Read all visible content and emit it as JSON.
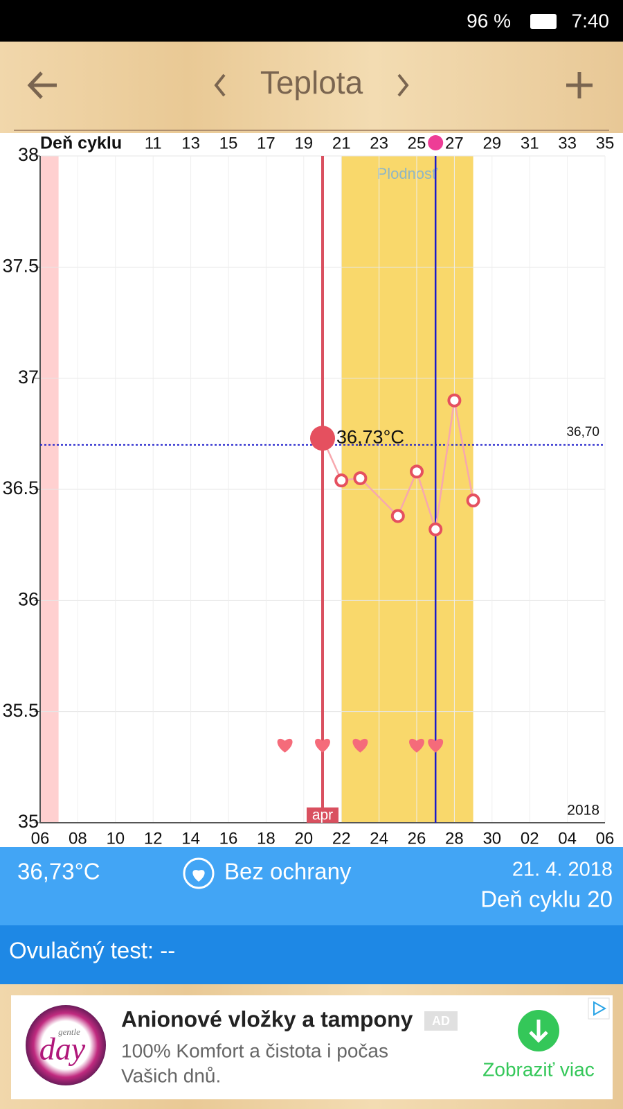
{
  "status_bar": {
    "battery": "96 %",
    "time": "7:40"
  },
  "header": {
    "title": "Teplota"
  },
  "chart_data": {
    "type": "line",
    "x_label": "Deň cyklu",
    "xlim": [
      5,
      35
    ],
    "xticks": [
      11,
      13,
      15,
      17,
      19,
      21,
      23,
      25,
      27,
      29,
      31,
      33,
      35
    ],
    "x2ticks": [
      {
        "value": 5,
        "label": "06"
      },
      {
        "value": 7,
        "label": "08"
      },
      {
        "value": 9,
        "label": "10"
      },
      {
        "value": 11,
        "label": "12"
      },
      {
        "value": 13,
        "label": "14"
      },
      {
        "value": 15,
        "label": "16"
      },
      {
        "value": 17,
        "label": "18"
      },
      {
        "value": 19,
        "label": "20"
      },
      {
        "value": 21,
        "label": "22"
      },
      {
        "value": 23,
        "label": "24"
      },
      {
        "value": 25,
        "label": "26"
      },
      {
        "value": 27,
        "label": "28"
      },
      {
        "value": 29,
        "label": "30"
      },
      {
        "value": 31,
        "label": "02"
      },
      {
        "value": 33,
        "label": "04"
      },
      {
        "value": 35,
        "label": "06"
      }
    ],
    "ylim": [
      35,
      38
    ],
    "yticks": [
      35,
      35.5,
      36,
      36.5,
      37,
      37.5,
      38
    ],
    "grid": true,
    "color": "#e5505f",
    "x": [
      20,
      21,
      22,
      24,
      25,
      26,
      27,
      28
    ],
    "values": [
      36.73,
      36.54,
      36.55,
      36.38,
      36.58,
      36.32,
      36.9,
      36.45
    ],
    "value_labels": [
      "36,73°C",
      null,
      null,
      null,
      null,
      null,
      null,
      null
    ],
    "fertile_window": [
      21,
      28
    ],
    "fertile_label": "Plodnosť",
    "period_days": [
      5,
      6
    ],
    "today": 20,
    "today_label": "apr",
    "ovulation_day": 26,
    "reference_line": {
      "value": 36.7,
      "label": "36,70"
    },
    "year_label": "2018",
    "intercourse_days": [
      18,
      20,
      22,
      25,
      26
    ]
  },
  "summary": {
    "temperature": "36,73°C",
    "protection": "Bez ochrany",
    "date": "21. 4. 2018",
    "cycle_day": "Deň cyklu 20",
    "ovulation_test": "Ovulačný test: --"
  },
  "ad": {
    "title": "Anionové vložky a tampony",
    "badge": "AD",
    "text_line1": "100% Komfort a čistota i počas",
    "text_line2": "Vašich dnů.",
    "button": "Zobraziť viac",
    "logo": "day",
    "logo_small": "gentle"
  }
}
